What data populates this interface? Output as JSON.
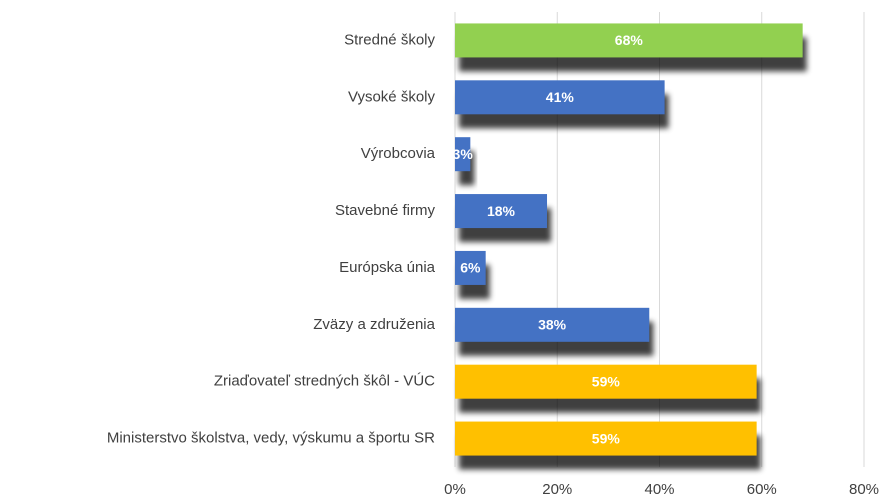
{
  "chart_data": {
    "type": "bar",
    "orientation": "horizontal",
    "categories": [
      "Stredné školy",
      "Vysoké školy",
      "Výrobcovia",
      "Stavebné firmy",
      "Európska únia",
      "Zväzy a združenia",
      "Zriaďovateľ stredných škôl - VÚC",
      "Ministerstvo školstva, vedy, výskumu a športu SR"
    ],
    "values": [
      68,
      41,
      3,
      18,
      6,
      38,
      59,
      59
    ],
    "value_labels": [
      "68%",
      "41%",
      "3%",
      "18%",
      "6%",
      "38%",
      "59%",
      "59%"
    ],
    "colors": [
      "#92d050",
      "#4472c4",
      "#4472c4",
      "#4472c4",
      "#4472c4",
      "#4472c4",
      "#ffc000",
      "#ffc000"
    ],
    "xlim": [
      0,
      80
    ],
    "xticks": [
      {
        "value": 0,
        "label": "0%"
      },
      {
        "value": 20,
        "label": "20%"
      },
      {
        "value": 40,
        "label": "40%"
      },
      {
        "value": 60,
        "label": "60%"
      },
      {
        "value": 80,
        "label": "80%"
      }
    ],
    "grid": true
  }
}
